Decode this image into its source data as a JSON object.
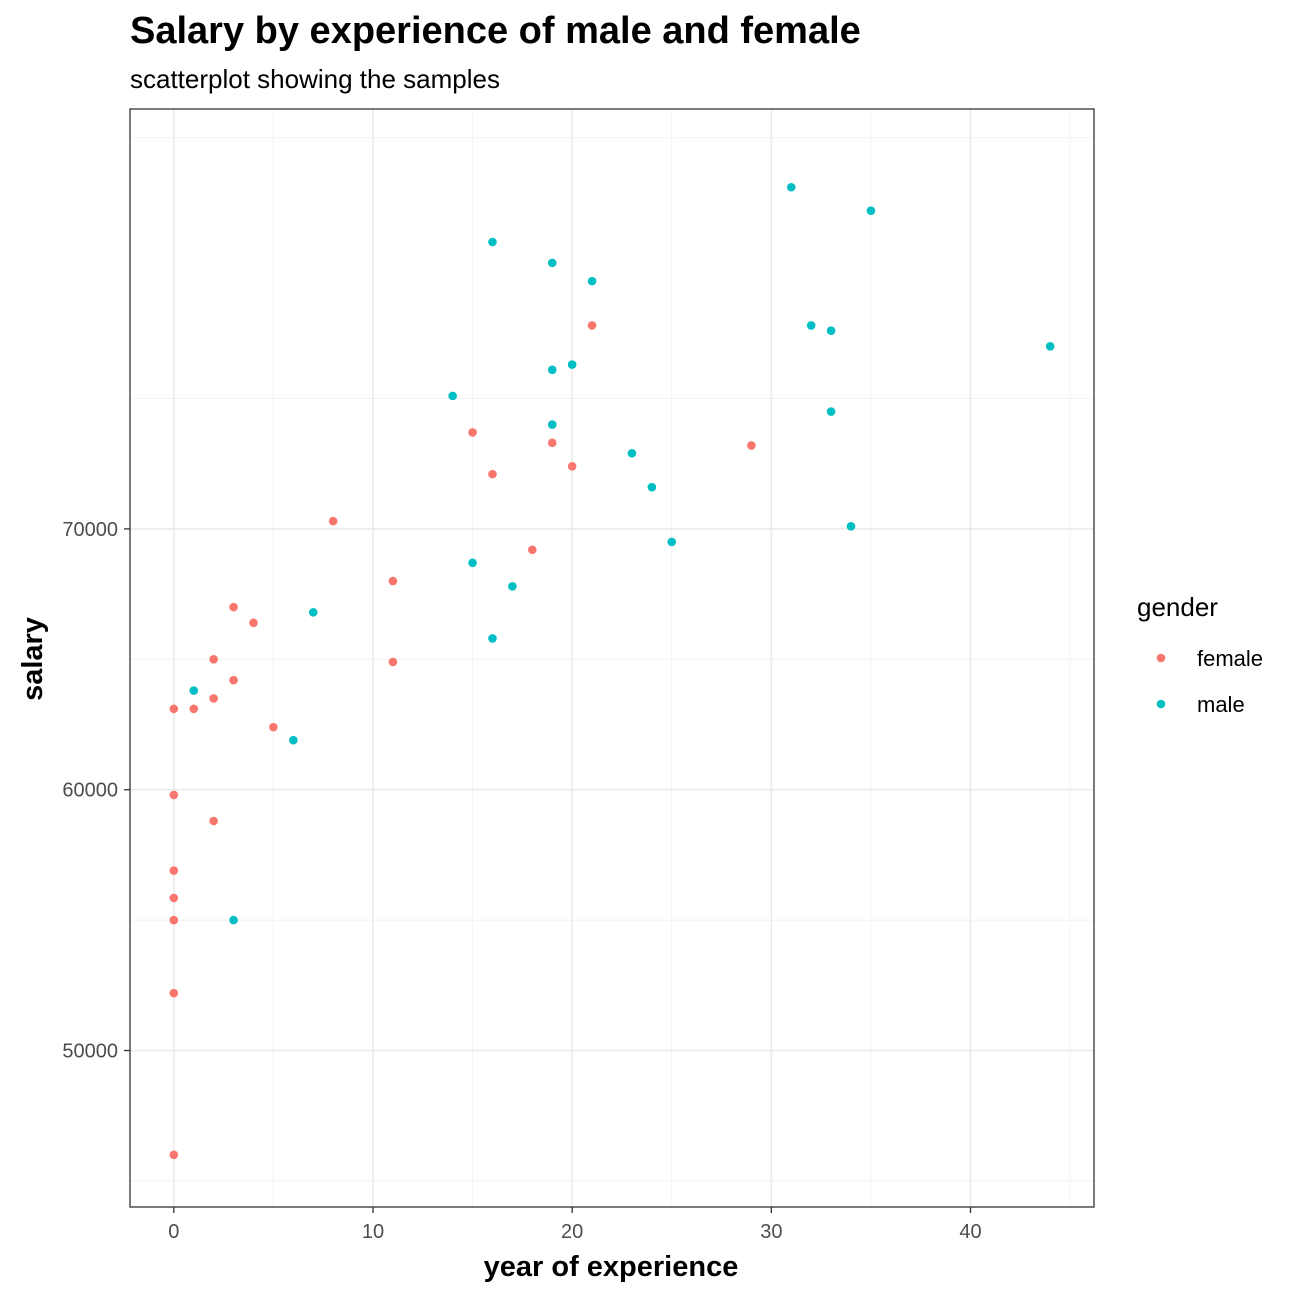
{
  "chart_data": {
    "type": "scatter",
    "title": "Salary by experience of male and female",
    "subtitle": "scatterplot showing the samples",
    "xlabel": "year of experience",
    "ylabel": "salary",
    "xlim": [
      -2.2,
      46.2
    ],
    "ylim": [
      44000,
      86100
    ],
    "x_ticks": [
      0,
      10,
      20,
      30,
      40
    ],
    "y_ticks": [
      50000,
      60000,
      70000
    ],
    "grid": true,
    "legend": {
      "title": "gender",
      "position": "right"
    },
    "series": [
      {
        "name": "female",
        "color": "#F8766D",
        "points": [
          [
            0,
            46000
          ],
          [
            0,
            52200
          ],
          [
            0,
            55000
          ],
          [
            0,
            55850
          ],
          [
            0,
            56900
          ],
          [
            0,
            59800
          ],
          [
            0,
            63100
          ],
          [
            1,
            63100
          ],
          [
            2,
            58800
          ],
          [
            2,
            63500
          ],
          [
            2,
            65000
          ],
          [
            3,
            64200
          ],
          [
            3,
            67000
          ],
          [
            4,
            66400
          ],
          [
            5,
            62400
          ],
          [
            8,
            70300
          ],
          [
            11,
            68000
          ],
          [
            11,
            64900
          ],
          [
            15,
            73700
          ],
          [
            16,
            72100
          ],
          [
            18,
            69200
          ],
          [
            19,
            73300
          ],
          [
            20,
            72400
          ],
          [
            21,
            77800
          ],
          [
            29,
            73200
          ]
        ]
      },
      {
        "name": "male",
        "color": "#00BFC4",
        "points": [
          [
            1,
            63800
          ],
          [
            3,
            55000
          ],
          [
            6,
            61900
          ],
          [
            7,
            66800
          ],
          [
            14,
            75100
          ],
          [
            15,
            68700
          ],
          [
            16,
            65800
          ],
          [
            16,
            81000
          ],
          [
            17,
            67800
          ],
          [
            19,
            80200
          ],
          [
            19,
            76100
          ],
          [
            19,
            74000
          ],
          [
            20,
            76300
          ],
          [
            21,
            79500
          ],
          [
            23,
            72900
          ],
          [
            24,
            71600
          ],
          [
            25,
            69500
          ],
          [
            31,
            83100
          ],
          [
            32,
            77800
          ],
          [
            33,
            77600
          ],
          [
            33,
            74500
          ],
          [
            34,
            70100
          ],
          [
            35,
            82200
          ],
          [
            44,
            77000
          ]
        ]
      }
    ]
  }
}
